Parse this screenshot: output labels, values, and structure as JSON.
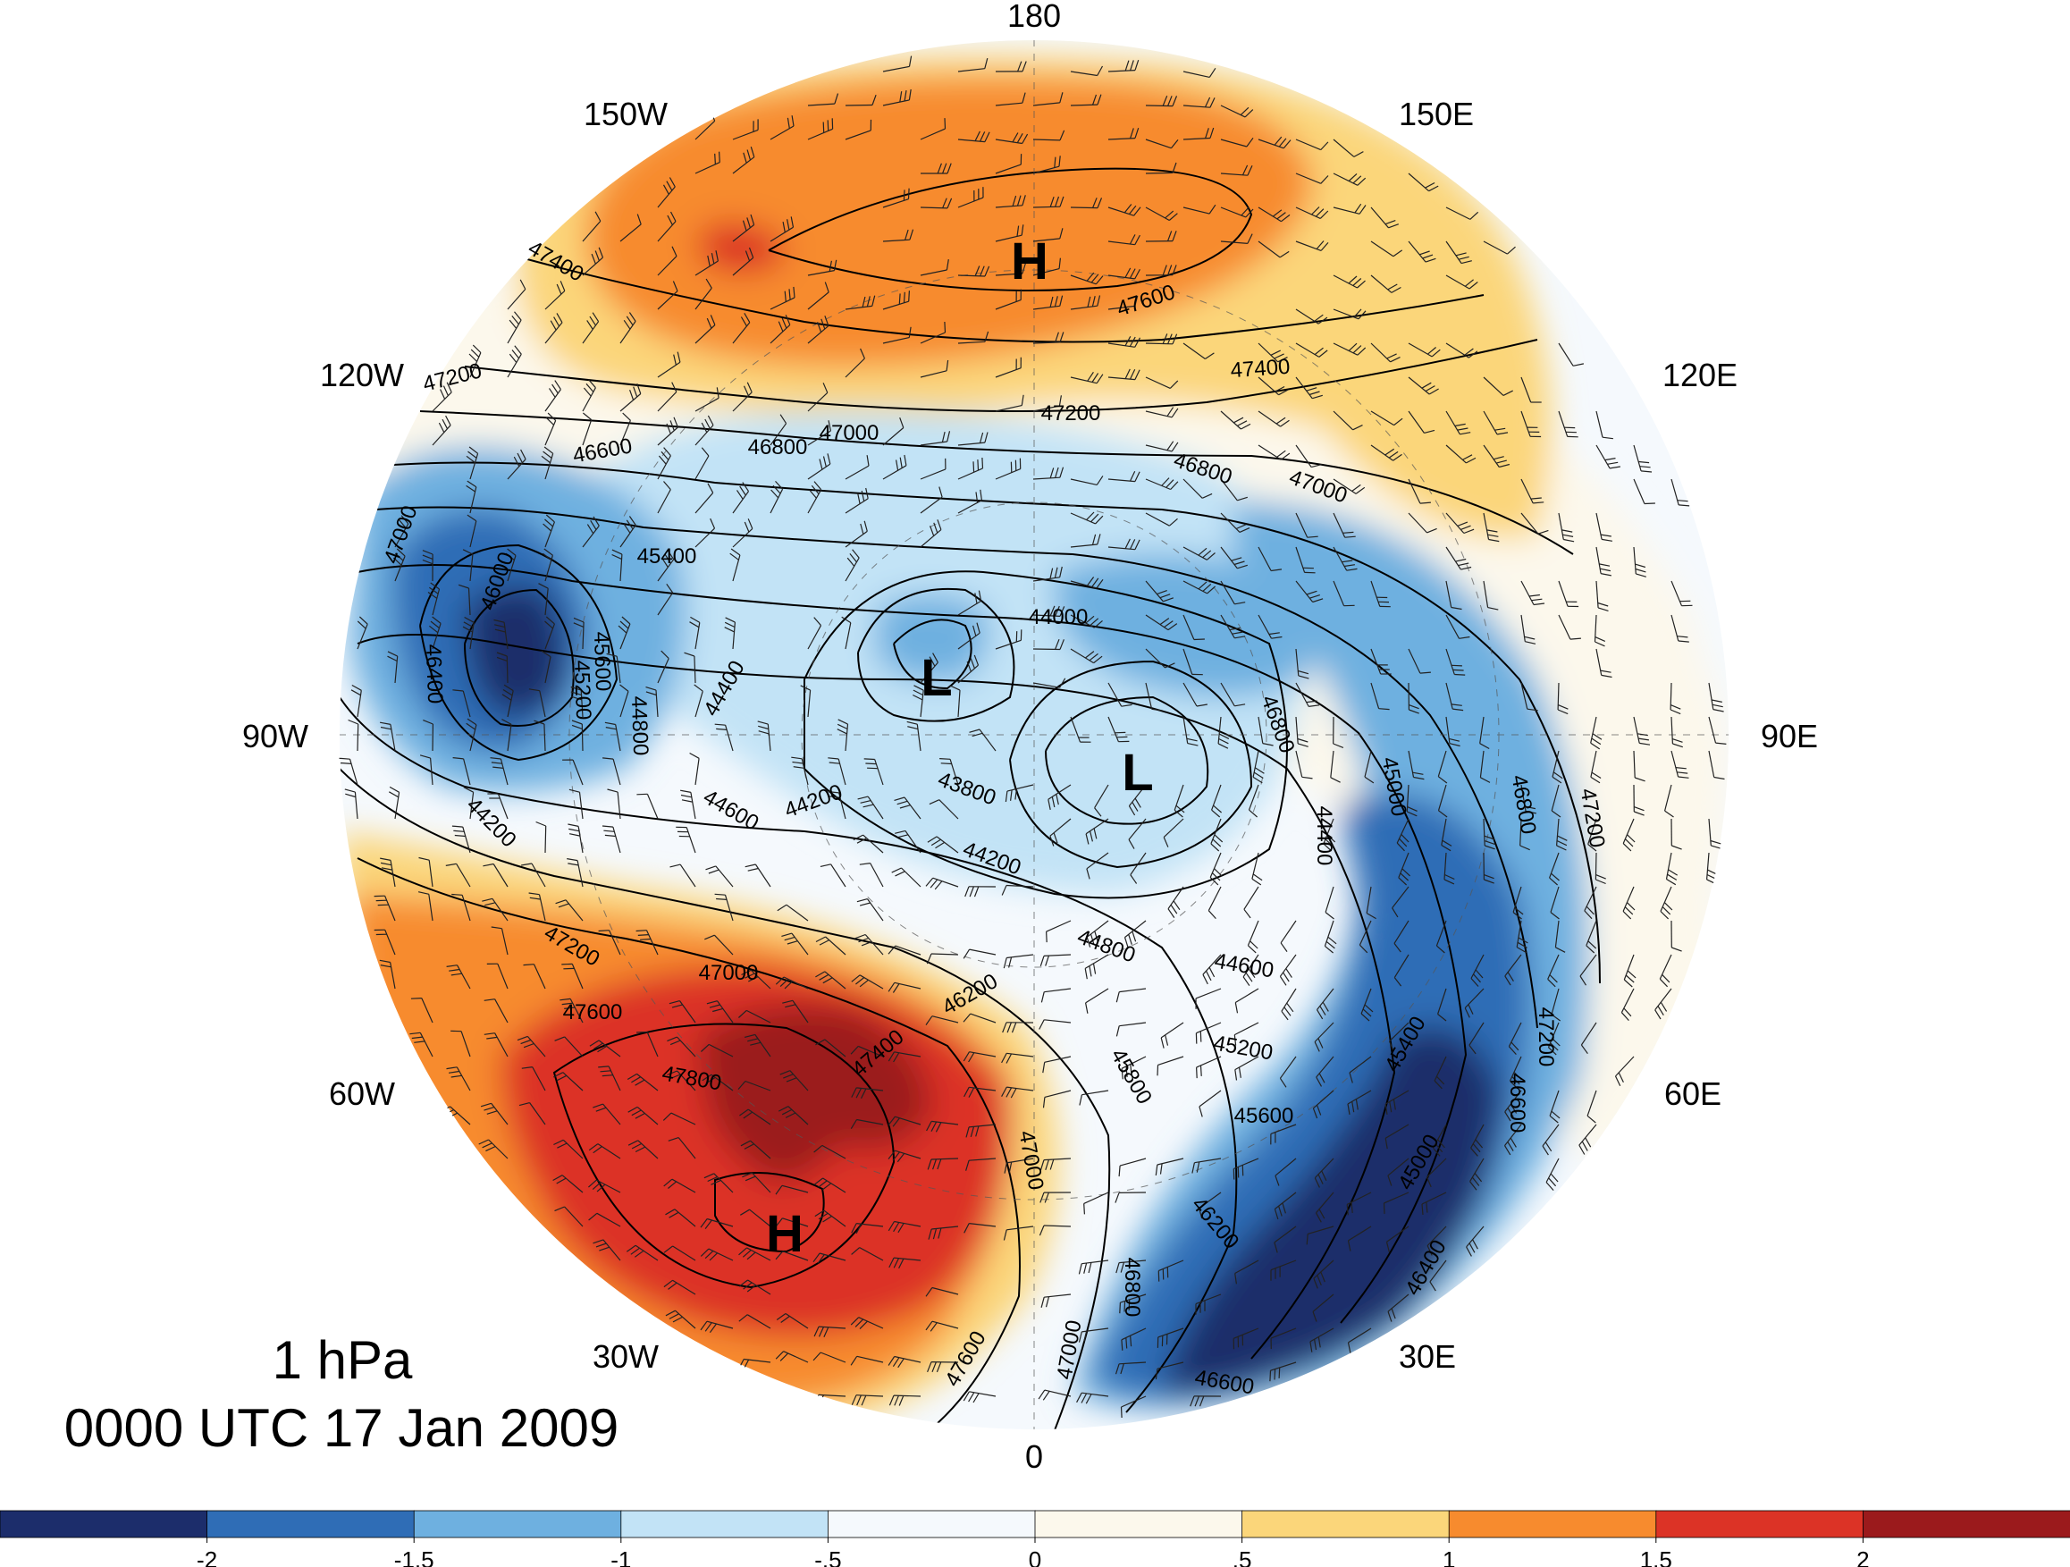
{
  "title": {
    "level": "1 hPa",
    "datetime": "0000 UTC 17 Jan 2009"
  },
  "longitude_labels": [
    {
      "id": "lon-180",
      "text": "180"
    },
    {
      "id": "lon-150w",
      "text": "150W"
    },
    {
      "id": "lon-150e",
      "text": "150E"
    },
    {
      "id": "lon-120w",
      "text": "120W"
    },
    {
      "id": "lon-120e",
      "text": "120E"
    },
    {
      "id": "lon-90w",
      "text": "90W"
    },
    {
      "id": "lon-90e",
      "text": "90E"
    },
    {
      "id": "lon-60w",
      "text": "60W"
    },
    {
      "id": "lon-60e",
      "text": "60E"
    },
    {
      "id": "lon-30w",
      "text": "30W"
    },
    {
      "id": "lon-30e",
      "text": "30E"
    },
    {
      "id": "lon-0",
      "text": "0"
    }
  ],
  "pressure_centers": [
    {
      "id": "high-pacific",
      "text": "H"
    },
    {
      "id": "low-west",
      "text": "L"
    },
    {
      "id": "low-east",
      "text": "L"
    },
    {
      "id": "high-atlantic",
      "text": "H"
    }
  ],
  "contour_labels": [
    "47400",
    "47600",
    "47400",
    "47200",
    "47000",
    "47200",
    "46800",
    "46600",
    "46800",
    "47000",
    "47000",
    "45400",
    "46000",
    "44000",
    "45600",
    "46400",
    "45200",
    "44800",
    "44400",
    "44200",
    "43800",
    "44600",
    "44200",
    "44200",
    "46800",
    "45000",
    "46800",
    "47200",
    "44400",
    "47200",
    "44800",
    "44600",
    "47000",
    "46200",
    "47600",
    "47400",
    "47800",
    "45200",
    "45400",
    "45800",
    "45600",
    "47000",
    "46600",
    "45000",
    "46200",
    "47000",
    "46400",
    "46800",
    "47600",
    "47200",
    "46600"
  ],
  "colorbar": {
    "ticks": [
      "-2",
      "-1.5",
      "-1",
      "-.5",
      "0",
      ".5",
      "1",
      "1.5",
      "2"
    ],
    "colors": [
      "#1c2d6b",
      "#2f6db6",
      "#6eb0e0",
      "#c2e3f6",
      "#f5f9fd",
      "#fcf8ec",
      "#fbd67a",
      "#f78b2e",
      "#dc3326",
      "#9b1a1c"
    ]
  },
  "colors": {
    "dark_blue": "#1c2d6b",
    "blue": "#2f6db6",
    "mid_blue": "#6eb0e0",
    "light_blue": "#c2e3f6",
    "near_white_blue": "#f5f9fd",
    "cream": "#fcf8ec",
    "yellow": "#fbd67a",
    "orange": "#f78b2e",
    "red": "#dc3326",
    "dark_red": "#9b1a1c"
  }
}
